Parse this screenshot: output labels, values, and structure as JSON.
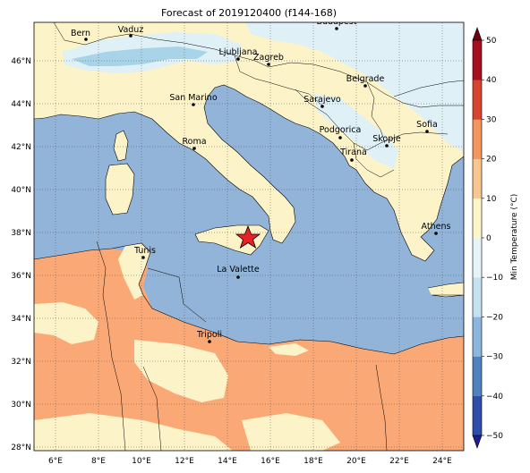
{
  "title": "Forecast of 2019120400 (f144-168)",
  "colorbar": {
    "label": "Min Temperature (°C)",
    "ticks": [
      "50",
      "40",
      "30",
      "20",
      "10",
      "0",
      "−10",
      "−20",
      "−30",
      "−40",
      "−50"
    ],
    "colors": [
      "#1e1e8c",
      "#2f4ea8",
      "#4f82bf",
      "#8cb6dd",
      "#c3e1ef",
      "#e6f4f8",
      "#fdf6c9",
      "#f9c690",
      "#f2955e",
      "#d6442f",
      "#a50f1f",
      "#6e0015"
    ]
  },
  "axes": {
    "x_ticks": [
      "6°E",
      "8°E",
      "10°E",
      "12°E",
      "14°E",
      "16°E",
      "18°E",
      "20°E",
      "22°E",
      "24°E"
    ],
    "y_ticks": [
      "46°N",
      "44°N",
      "42°N",
      "40°N",
      "38°N",
      "36°N",
      "34°N",
      "32°N",
      "30°N",
      "28°N"
    ]
  },
  "cities": [
    {
      "name": "Bern"
    },
    {
      "name": "Vaduz"
    },
    {
      "name": "Budapest"
    },
    {
      "name": "Ljubljana"
    },
    {
      "name": "Zagreb"
    },
    {
      "name": "Belgrade"
    },
    {
      "name": "San Marino"
    },
    {
      "name": "Sarajevo"
    },
    {
      "name": "Sofia"
    },
    {
      "name": "Roma"
    },
    {
      "name": "Podgorica"
    },
    {
      "name": "Skopje"
    },
    {
      "name": "Tirana"
    },
    {
      "name": "Athens"
    },
    {
      "name": "Tunis"
    },
    {
      "name": "La Valette"
    },
    {
      "name": "Tripoli"
    }
  ],
  "colors": {
    "sea": "#92b4d8",
    "mild": "#fdf3c8",
    "warm": "#fba877",
    "cool": "#dff0f6",
    "cold": "#a9d3e8",
    "star": "#e8202a"
  }
}
